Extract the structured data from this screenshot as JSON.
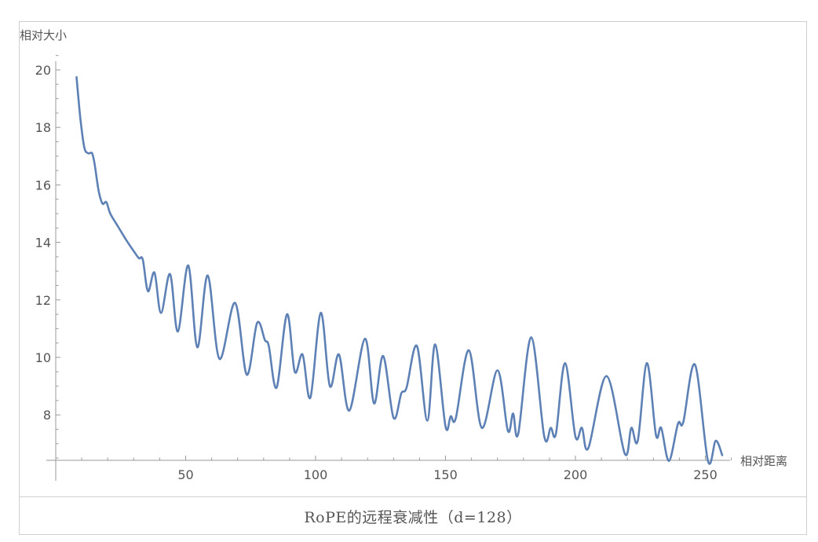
{
  "caption": "RoPE的远程衰减性（d=128）",
  "chart_data": {
    "type": "line",
    "title": "",
    "xlabel": "相对距离",
    "ylabel": "相对大小",
    "xlim": [
      0,
      262
    ],
    "ylim": [
      6.5,
      20.5
    ],
    "x_ticks": [
      50,
      100,
      150,
      200,
      250
    ],
    "y_ticks": [
      8,
      10,
      12,
      14,
      16,
      18,
      20
    ],
    "grid": false,
    "legend": "none",
    "line_color": "#5E81B5",
    "series": [
      {
        "name": "",
        "points": [
          [
            8,
            19.75
          ],
          [
            9.5,
            18.3
          ],
          [
            11,
            17.3
          ],
          [
            12.5,
            17.1
          ],
          [
            14,
            17.1
          ],
          [
            15,
            16.7
          ],
          [
            16.5,
            15.8
          ],
          [
            18,
            15.35
          ],
          [
            19.5,
            15.4
          ],
          [
            21,
            15.0
          ],
          [
            24,
            14.55
          ],
          [
            27,
            14.1
          ],
          [
            30,
            13.7
          ],
          [
            32,
            13.45
          ],
          [
            33.5,
            13.4
          ],
          [
            35.5,
            12.3
          ],
          [
            38,
            12.95
          ],
          [
            40.5,
            11.55
          ],
          [
            44,
            12.9
          ],
          [
            47,
            10.9
          ],
          [
            51,
            13.2
          ],
          [
            54.5,
            10.35
          ],
          [
            58.5,
            12.85
          ],
          [
            63,
            9.95
          ],
          [
            69,
            11.9
          ],
          [
            73.5,
            9.4
          ],
          [
            77.5,
            11.2
          ],
          [
            80.5,
            10.6
          ],
          [
            82,
            10.4
          ],
          [
            85,
            8.95
          ],
          [
            89,
            11.5
          ],
          [
            92,
            9.5
          ],
          [
            95,
            10.1
          ],
          [
            98,
            8.6
          ],
          [
            102,
            11.55
          ],
          [
            105.5,
            9.0
          ],
          [
            109,
            10.1
          ],
          [
            113,
            8.15
          ],
          [
            119,
            10.65
          ],
          [
            122.5,
            8.4
          ],
          [
            126,
            10.05
          ],
          [
            130,
            7.9
          ],
          [
            133,
            8.75
          ],
          [
            135,
            8.95
          ],
          [
            139,
            10.4
          ],
          [
            143,
            7.8
          ],
          [
            146,
            10.45
          ],
          [
            150,
            7.6
          ],
          [
            152,
            7.95
          ],
          [
            154,
            7.9
          ],
          [
            159,
            10.25
          ],
          [
            164,
            7.55
          ],
          [
            170,
            9.55
          ],
          [
            174,
            7.45
          ],
          [
            176,
            8.05
          ],
          [
            178,
            7.35
          ],
          [
            183,
            10.7
          ],
          [
            188,
            7.25
          ],
          [
            190.5,
            7.55
          ],
          [
            192.5,
            7.35
          ],
          [
            196,
            9.8
          ],
          [
            200,
            7.25
          ],
          [
            202.5,
            7.55
          ],
          [
            205,
            6.85
          ],
          [
            212,
            9.35
          ],
          [
            219,
            6.65
          ],
          [
            221.5,
            7.55
          ],
          [
            224,
            7.1
          ],
          [
            227.5,
            9.8
          ],
          [
            231,
            7.3
          ],
          [
            233,
            7.55
          ],
          [
            236,
            6.4
          ],
          [
            239.5,
            7.7
          ],
          [
            241.5,
            7.75
          ],
          [
            246,
            9.75
          ],
          [
            251,
            6.4
          ],
          [
            254,
            7.1
          ],
          [
            256.5,
            6.6
          ]
        ]
      }
    ]
  }
}
